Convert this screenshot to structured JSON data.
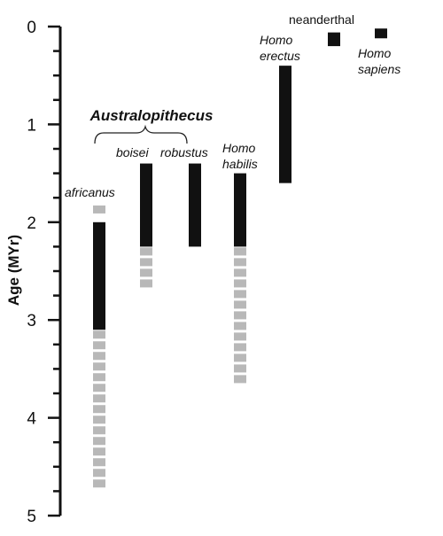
{
  "chart_data": {
    "type": "bar",
    "orientation": "vertical-range",
    "ylabel": "Age (MYr)",
    "ylim": [
      0,
      5
    ],
    "y_inverted": true,
    "y_ticks": [
      "0",
      "1",
      "2",
      "3",
      "4",
      "5"
    ],
    "minor_tick_step": 0.25,
    "colors": {
      "confirmed": "#111111",
      "uncertain": "#b8b8b8"
    },
    "groups": [
      {
        "label": "Australopithecus",
        "members": [
          "boisei",
          "robustus"
        ]
      }
    ],
    "series": [
      {
        "label": "africanus",
        "label_lines": [
          "africanus"
        ],
        "italic": true,
        "solid": [
          2.0,
          3.1
        ],
        "dashed": [
          [
            1.82,
            2.0
          ],
          [
            3.1,
            4.75
          ]
        ]
      },
      {
        "label": "boisei",
        "label_lines": [
          "boisei"
        ],
        "italic": true,
        "solid": [
          1.4,
          2.25
        ],
        "dashed": [
          [
            2.25,
            2.7
          ]
        ]
      },
      {
        "label": "robustus",
        "label_lines": [
          "robustus"
        ],
        "italic": true,
        "solid": [
          1.4,
          2.25
        ],
        "dashed": []
      },
      {
        "label": "Homo habilis",
        "label_lines": [
          "Homo",
          "habilis"
        ],
        "italic": true,
        "solid": [
          1.5,
          2.25
        ],
        "dashed": [
          [
            2.25,
            3.7
          ]
        ]
      },
      {
        "label": "Homo erectus",
        "label_lines": [
          "Homo",
          "erectus"
        ],
        "italic": true,
        "solid": [
          0.4,
          1.6
        ],
        "dashed": []
      },
      {
        "label": "neanderthal",
        "label_lines": [
          "neanderthal"
        ],
        "italic": false,
        "solid": [
          0.06,
          0.2
        ],
        "dashed": []
      },
      {
        "label": "Homo sapiens",
        "label_lines": [
          "Homo",
          "sapiens"
        ],
        "italic": true,
        "solid": [
          0.02,
          0.12
        ],
        "dashed": []
      }
    ]
  }
}
